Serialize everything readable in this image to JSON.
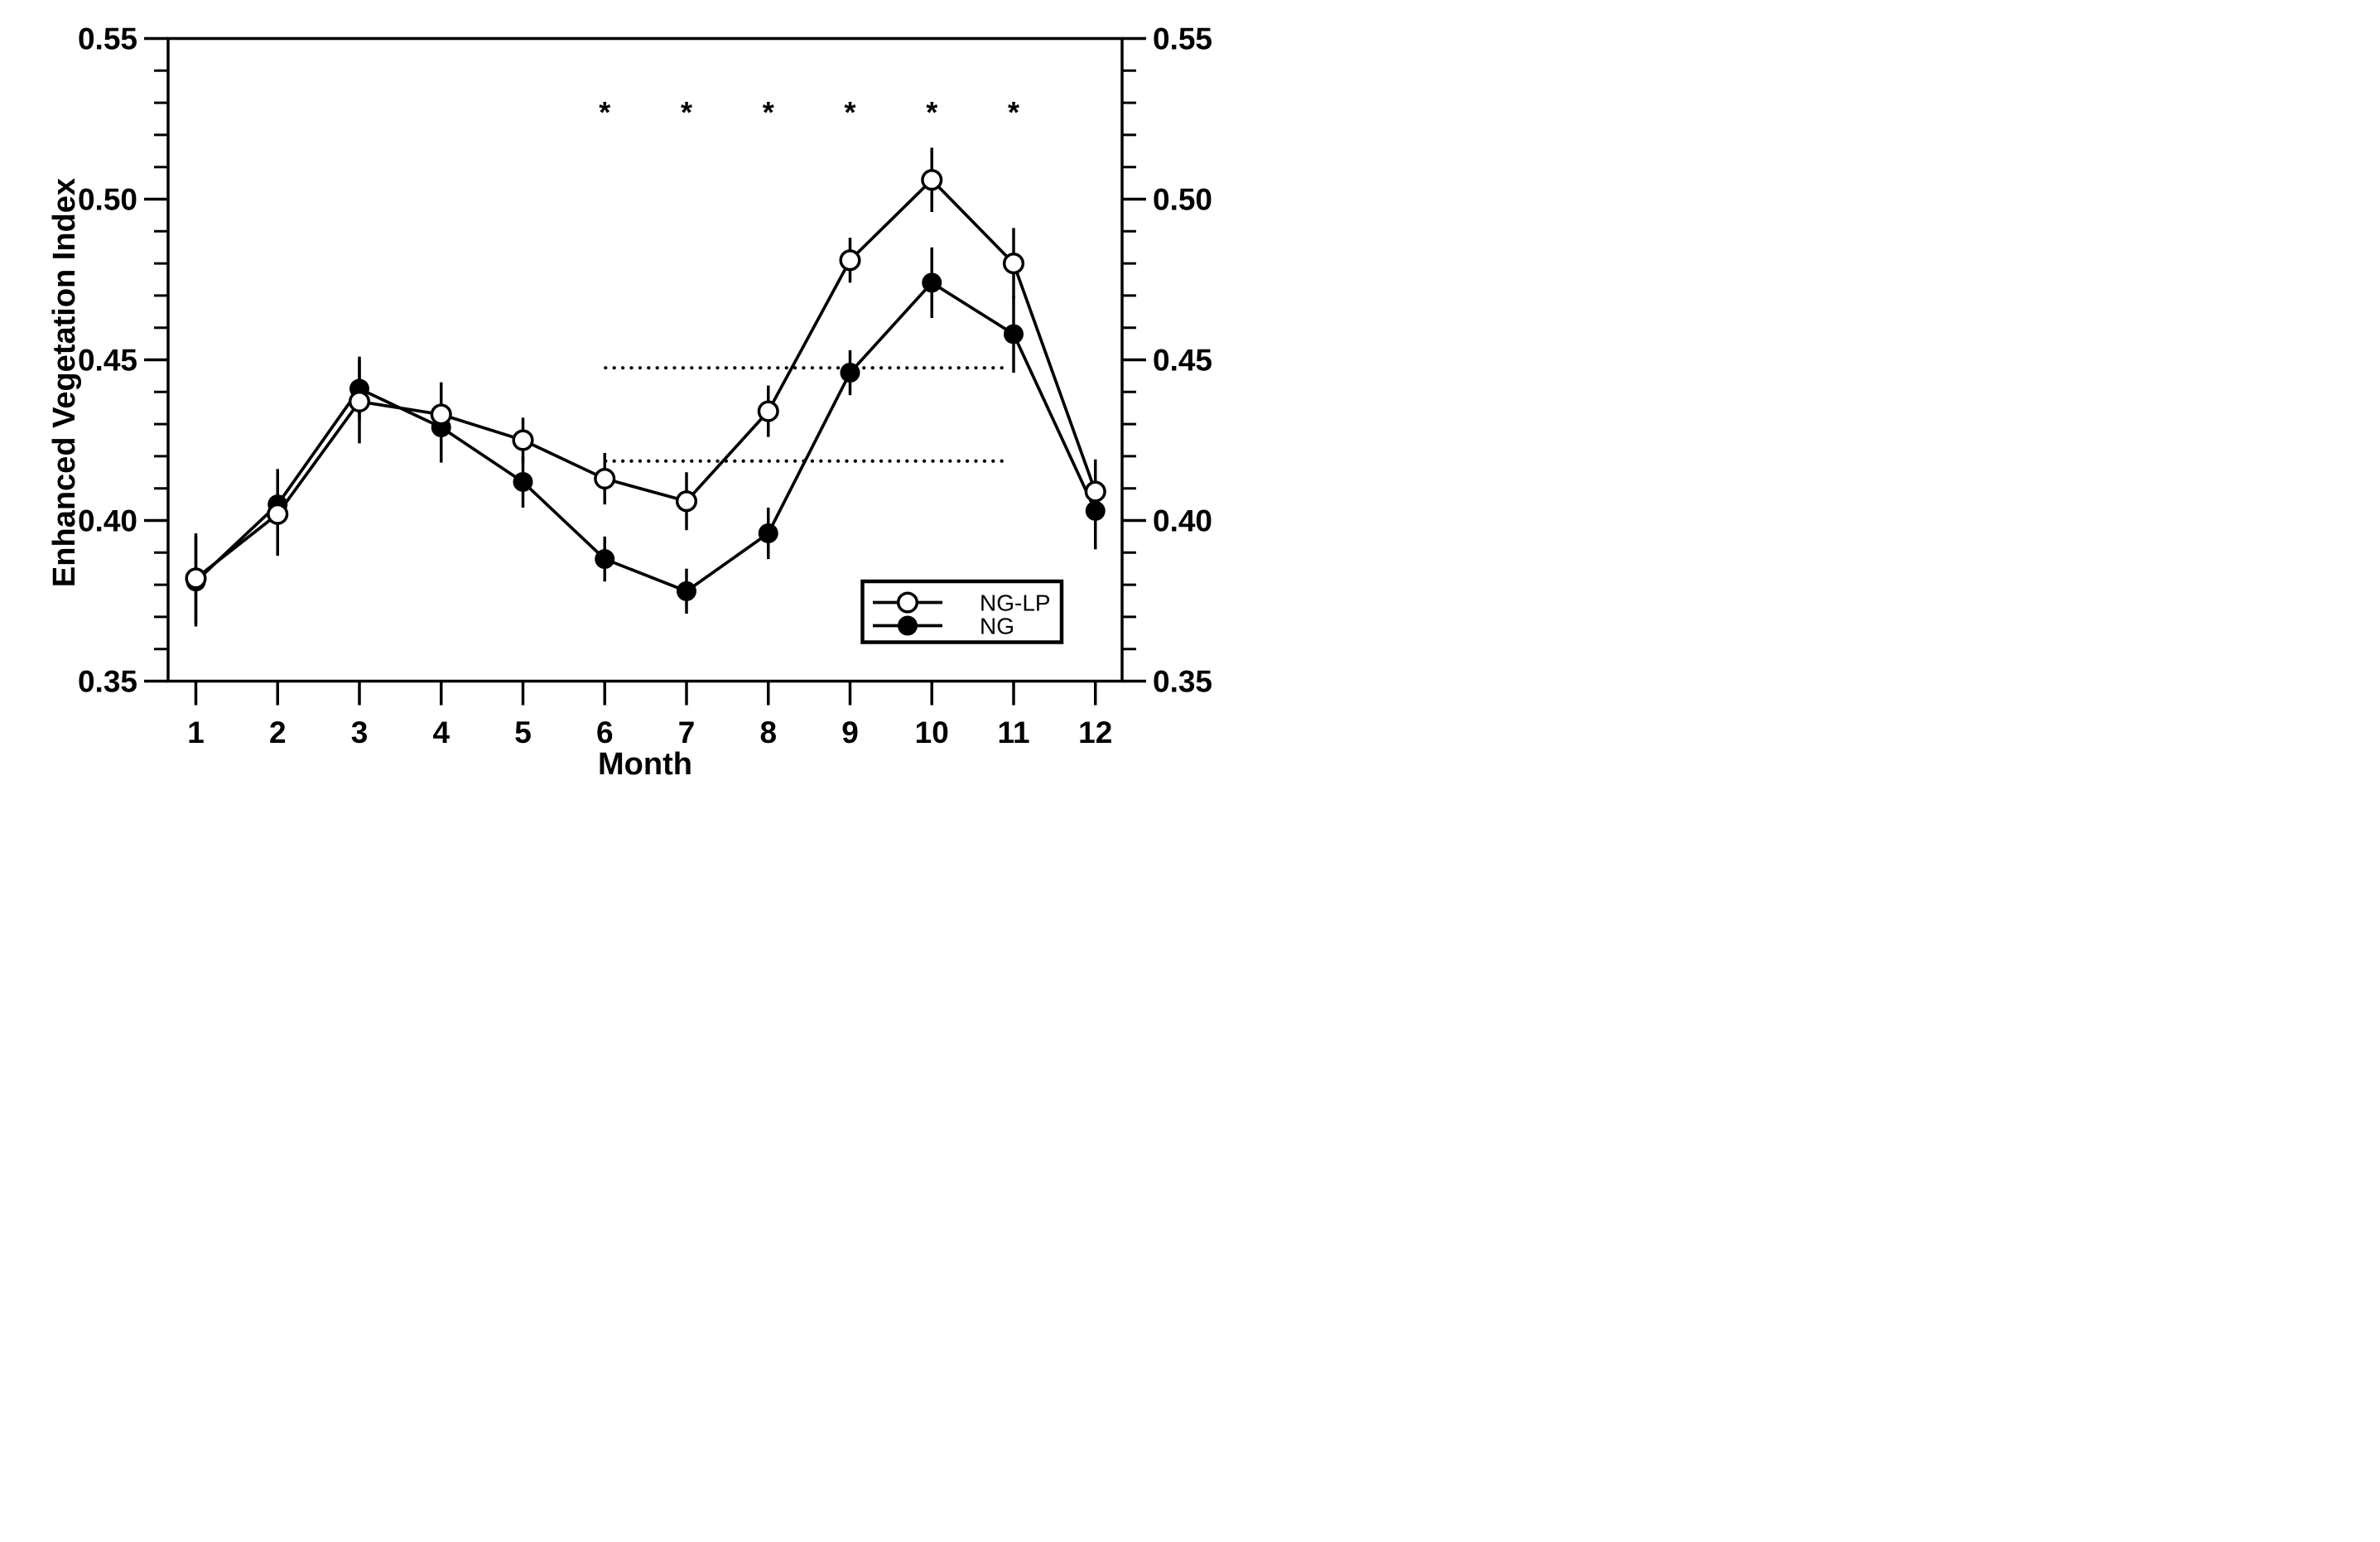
{
  "chart_data": {
    "type": "line",
    "xlabel": "Month",
    "ylabel": "Enhanced Vegetation Index",
    "x": [
      1,
      2,
      3,
      4,
      5,
      6,
      7,
      8,
      9,
      10,
      11,
      12
    ],
    "ylim": [
      0.35,
      0.55
    ],
    "yticks_major": [
      0.35,
      0.4,
      0.45,
      0.5,
      0.55
    ],
    "ytick_labels": [
      "0.35",
      "0.40",
      "0.45",
      "0.50",
      "0.55"
    ],
    "ytick_minor_step": 0.01,
    "grid": false,
    "mirrored_right_axis": true,
    "series": [
      {
        "name": "NG-LP",
        "marker": "open-circle",
        "values": [
          0.382,
          0.402,
          0.437,
          0.433,
          0.425,
          0.413,
          0.406,
          0.434,
          0.481,
          0.506,
          0.48,
          0.409
        ],
        "errors": [
          0.014,
          0.013,
          0.013,
          0.01,
          0.007,
          0.008,
          0.009,
          0.008,
          0.007,
          0.01,
          0.011,
          0.01
        ]
      },
      {
        "name": "NG",
        "marker": "filled-circle",
        "values": [
          0.381,
          0.405,
          0.441,
          0.429,
          0.412,
          0.388,
          0.378,
          0.396,
          0.446,
          0.474,
          0.458,
          0.403
        ],
        "errors": [
          0.014,
          0.011,
          0.01,
          0.011,
          0.008,
          0.007,
          0.007,
          0.008,
          0.007,
          0.011,
          0.012,
          0.012
        ]
      }
    ],
    "reference_lines": [
      {
        "style": "dotted",
        "y": 0.4475,
        "x_start": 6,
        "x_end": 11
      },
      {
        "style": "dotted",
        "y": 0.4185,
        "x_start": 6,
        "x_end": 11
      }
    ],
    "significance": {
      "symbol": "*",
      "months": [
        6,
        7,
        8,
        9,
        10,
        11
      ],
      "y": 0.5285
    },
    "legend": {
      "position": "lower-right",
      "entries": [
        {
          "label": "NG-LP",
          "marker": "open-circle"
        },
        {
          "label": "NG",
          "marker": "filled-circle"
        }
      ]
    },
    "colors": {
      "foreground": "#000000",
      "background": "#ffffff"
    }
  }
}
